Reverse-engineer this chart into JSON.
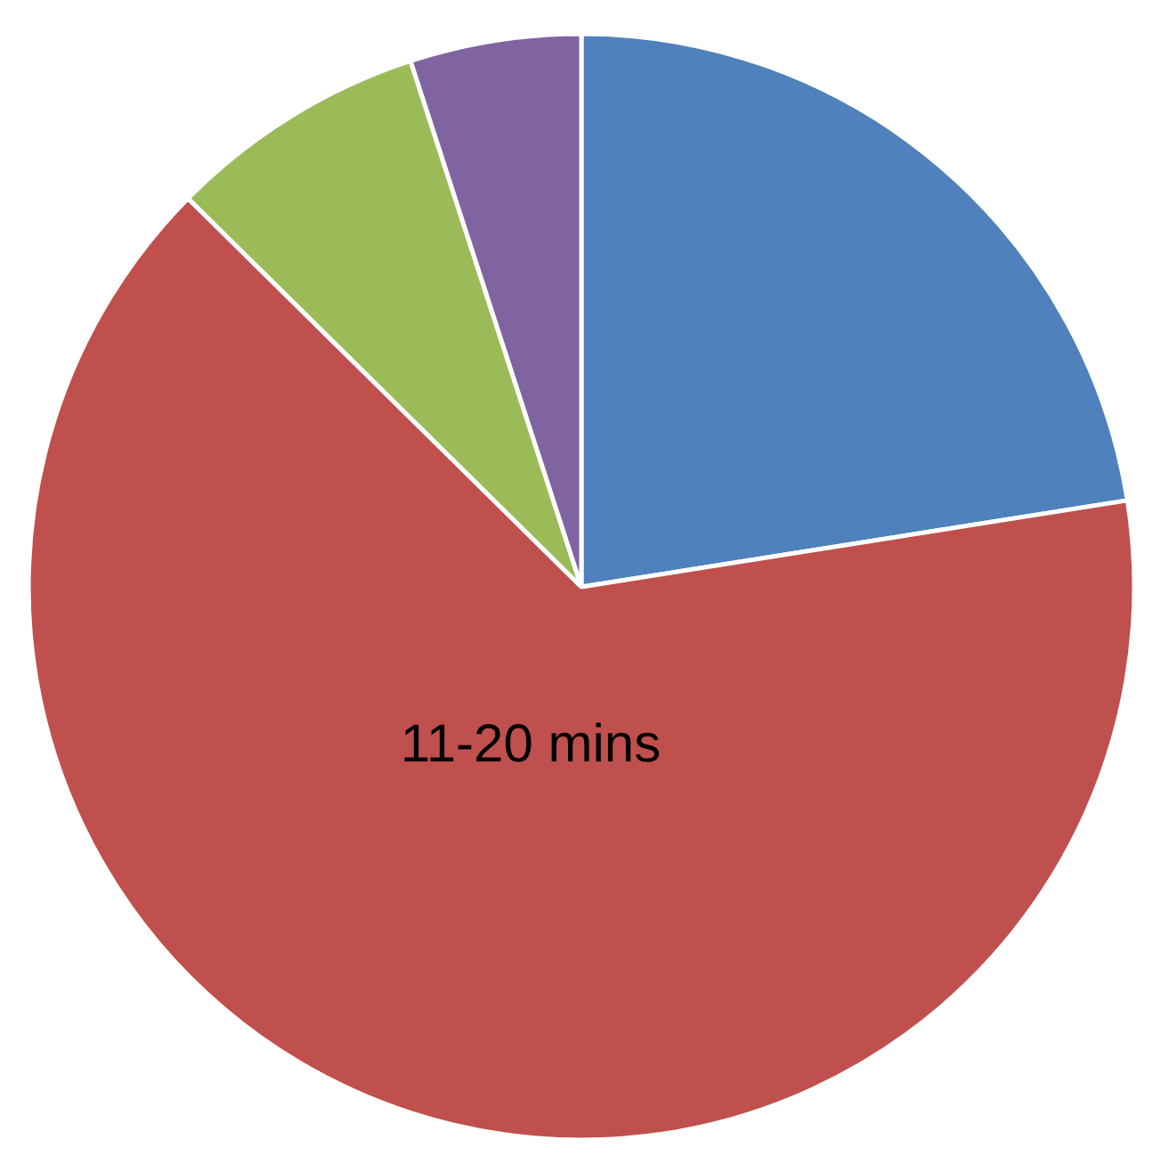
{
  "chart_data": {
    "type": "pie",
    "categories": [
      null,
      "11-20 mins",
      null,
      null
    ],
    "values": [
      22.5,
      64.9,
      7.6,
      5.0
    ],
    "colors": [
      "#4f81bd",
      "#c0504d",
      "#9bbb59",
      "#8064a2"
    ]
  }
}
